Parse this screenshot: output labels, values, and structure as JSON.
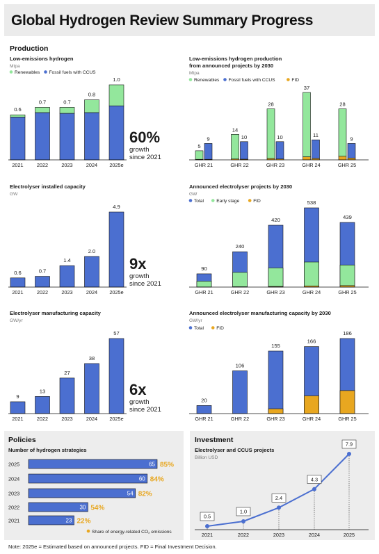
{
  "page": {
    "title": "Global Hydrogen Review Summary Progress",
    "note": "Note: 2025e = Estimated based on announced projects. FID = Final Investment Decision."
  },
  "sections": {
    "production": "Production",
    "policies": "Policies",
    "investment": "Investment"
  },
  "colors": {
    "renewables": "#93e79c",
    "fossil": "#4b6fd0",
    "fid": "#e8a720",
    "early": "#93e79c",
    "total": "#4b6fd0",
    "panel_bg": "#ededed",
    "header_bg": "#ebebeb",
    "share_text": "#e8a720",
    "line": "#4b6fd0"
  },
  "callouts": {
    "production": {
      "big": "60%",
      "line1": "growth",
      "line2": "since 2021"
    },
    "electrolyser": {
      "big": "9x",
      "line1": "growth",
      "line2": "since 2021"
    },
    "manufacturing": {
      "big": "6x",
      "line1": "growth",
      "line2": "since 2021"
    }
  },
  "chart_data": [
    {
      "id": "low_emissions_hydrogen",
      "type": "bar",
      "stacked": true,
      "title": "Low-emissions hydrogen",
      "unit": "Mtpa",
      "legend": [
        "Renewables",
        "Fossil fuels with CCUS"
      ],
      "categories": [
        "2021",
        "2022",
        "2023",
        "2024",
        "2025e"
      ],
      "series": [
        {
          "name": "Fossil fuels with CCUS",
          "values": [
            0.57,
            0.63,
            0.62,
            0.63,
            0.72
          ]
        },
        {
          "name": "Renewables",
          "values": [
            0.03,
            0.07,
            0.08,
            0.17,
            0.28
          ]
        }
      ],
      "totals": [
        "0.6",
        "0.7",
        "0.7",
        "0.8",
        "1.0"
      ],
      "ylim": [
        0,
        1.0
      ]
    },
    {
      "id": "announced_production",
      "type": "bar",
      "stacked": true,
      "grouped": true,
      "title": "Low-emissions hydrogen production",
      "title2": "from announced projects by 2030",
      "unit": "Mtpa",
      "legend": [
        "Renewables",
        "Fossil fuels with CCUS",
        "FID"
      ],
      "categories": [
        "GHR 21",
        "GHR 22",
        "GHR 23",
        "GHR 24",
        "GHR 25"
      ],
      "renewables": {
        "fid": [
          0.3,
          0.5,
          0.8,
          1.7,
          2.0
        ],
        "rest": [
          4.7,
          13.5,
          27.2,
          35.3,
          26.0
        ],
        "totals": [
          "5",
          "14",
          "28",
          "37",
          "28"
        ]
      },
      "fossil": {
        "fid": [
          0.3,
          0.4,
          0.5,
          0.8,
          1.0
        ],
        "rest": [
          8.7,
          9.6,
          9.5,
          10.2,
          8.0
        ],
        "totals": [
          "9",
          "10",
          "10",
          "11",
          "9"
        ]
      },
      "ylim": [
        0,
        37
      ]
    },
    {
      "id": "electrolyser_installed",
      "type": "bar",
      "title": "Electrolyser installed capacity",
      "unit": "GW",
      "categories": [
        "2021",
        "2022",
        "2023",
        "2024",
        "2025e"
      ],
      "values": [
        0.6,
        0.7,
        1.4,
        2.0,
        4.9
      ],
      "labels": [
        "0.6",
        "0.7",
        "1.4",
        "2.0",
        "4.9"
      ],
      "ylim": [
        0,
        4.9
      ]
    },
    {
      "id": "announced_electrolyser",
      "type": "bar",
      "stacked": true,
      "title": "Announced electrolyser projects by 2030",
      "unit": "GW",
      "legend": [
        "Total",
        "Early stage",
        "FID"
      ],
      "categories": [
        "GHR 21",
        "GHR 22",
        "GHR 23",
        "GHR 24",
        "GHR 25"
      ],
      "fid": [
        1,
        2,
        4,
        8,
        10
      ],
      "early": [
        39,
        98,
        126,
        162,
        140
      ],
      "totals": [
        90,
        240,
        420,
        538,
        439
      ],
      "labels": [
        "90",
        "240",
        "420",
        "538",
        "439"
      ],
      "ylim": [
        0,
        538
      ]
    },
    {
      "id": "electrolyser_manufacturing",
      "type": "bar",
      "title": "Electrolyser manufacturing capacity",
      "unit": "GW/yr",
      "categories": [
        "2021",
        "2022",
        "2023",
        "2024",
        "2025e"
      ],
      "values": [
        9,
        13,
        27,
        38,
        57
      ],
      "labels": [
        "9",
        "13",
        "27",
        "38",
        "57"
      ],
      "ylim": [
        0,
        57
      ]
    },
    {
      "id": "announced_manufacturing",
      "type": "bar",
      "stacked": true,
      "title": "Announced electrolyser manufacturing capacity by 2030",
      "unit": "GW/yr",
      "legend": [
        "Total",
        "FID"
      ],
      "categories": [
        "GHR 21",
        "GHR 22",
        "GHR 23",
        "GHR 24",
        "GHR 25"
      ],
      "fid": [
        0,
        0,
        12,
        44,
        57
      ],
      "totals": [
        20,
        106,
        155,
        166,
        186
      ],
      "labels": [
        "20",
        "106",
        "155",
        "166",
        "186"
      ],
      "ylim": [
        0,
        186
      ]
    },
    {
      "id": "hydrogen_strategies",
      "type": "bar",
      "orientation": "horizontal",
      "title": "Number of hydrogen strategies",
      "legend": [
        "Share of energy-related CO₂ emissions"
      ],
      "categories": [
        "2025",
        "2024",
        "2023",
        "2022",
        "2021"
      ],
      "values": [
        65,
        60,
        54,
        30,
        23
      ],
      "labels": [
        "65",
        "60",
        "54",
        "30",
        "23"
      ],
      "shares": [
        "85%",
        "84%",
        "82%",
        "54%",
        "22%"
      ],
      "xlim": [
        0,
        65
      ]
    },
    {
      "id": "investment",
      "type": "line",
      "title": "Electrolyser and CCUS projects",
      "unit": "Billion USD",
      "categories": [
        "2021",
        "2022",
        "2023",
        "2024",
        "2025"
      ],
      "values": [
        0.5,
        1.0,
        2.4,
        4.3,
        7.9
      ],
      "labels": [
        "0.5",
        "1.0",
        "2.4",
        "4.3",
        "7.9"
      ],
      "ylim": [
        0,
        7.9
      ]
    }
  ]
}
